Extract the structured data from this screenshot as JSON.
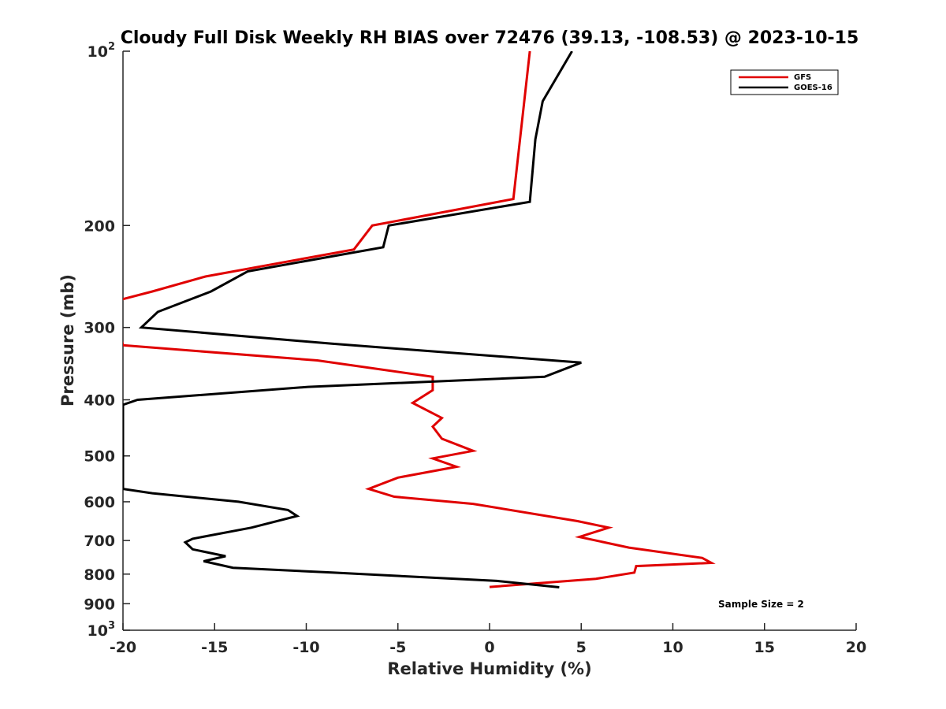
{
  "chart_data": {
    "type": "line",
    "title": "Cloudy Full Disk Weekly RH BIAS over 72476 (39.13, -108.53) @ 2023-10-15",
    "xlabel": "Relative Humidity (%)",
    "ylabel": "Pressure (mb)",
    "xlim": [
      -20,
      20
    ],
    "ylim": [
      100,
      1000
    ],
    "y_scale": "log",
    "y_reversed": true,
    "x_ticks": [
      -20,
      -15,
      -10,
      -5,
      0,
      5,
      10,
      15,
      20
    ],
    "x_tick_labels": [
      "-20",
      "-15",
      "-10",
      "-5",
      "0",
      "5",
      "10",
      "15",
      "20"
    ],
    "y_ticks": [
      100,
      200,
      300,
      400,
      500,
      600,
      700,
      800,
      900,
      1000
    ],
    "y_tick_labels": [
      {
        "base": "10",
        "sup": "2"
      },
      {
        "base": "200",
        "sup": ""
      },
      {
        "base": "300",
        "sup": ""
      },
      {
        "base": "400",
        "sup": ""
      },
      {
        "base": "500",
        "sup": ""
      },
      {
        "base": "600",
        "sup": ""
      },
      {
        "base": "700",
        "sup": ""
      },
      {
        "base": "800",
        "sup": ""
      },
      {
        "base": "900",
        "sup": ""
      },
      {
        "base": "10",
        "sup": "3"
      }
    ],
    "grid": false,
    "legend_position": "top-right",
    "annotation": "Sample Size = 2",
    "series": [
      {
        "name": "GFS",
        "color": "#e00000",
        "points": [
          [
            2.2,
            100
          ],
          [
            1.3,
            180
          ],
          [
            -6.4,
            200
          ],
          [
            -7.4,
            220
          ],
          [
            -15.5,
            245
          ],
          [
            -18.4,
            260
          ],
          [
            -20,
            268
          ],
          [
            -20.6,
            275
          ],
          [
            -20,
            322
          ],
          [
            -9.4,
            342
          ],
          [
            -3.1,
            365
          ],
          [
            -3.1,
            385
          ],
          [
            -4.2,
            405
          ],
          [
            -2.6,
            430
          ],
          [
            -3.1,
            445
          ],
          [
            -2.6,
            467
          ],
          [
            -0.9,
            490
          ],
          [
            -3.1,
            505
          ],
          [
            -1.8,
            522
          ],
          [
            -5.0,
            545
          ],
          [
            -6.6,
            570
          ],
          [
            -5.2,
            588
          ],
          [
            -0.9,
            605
          ],
          [
            4.8,
            648
          ],
          [
            6.5,
            665
          ],
          [
            4.9,
            690
          ],
          [
            7.6,
            720
          ],
          [
            11.6,
            750
          ],
          [
            12.1,
            765
          ],
          [
            8.0,
            775
          ],
          [
            7.9,
            795
          ],
          [
            5.8,
            815
          ],
          [
            0,
            842
          ]
        ]
      },
      {
        "name": "GOES-16",
        "color": "#000000",
        "points": [
          [
            4.5,
            100
          ],
          [
            2.9,
            122
          ],
          [
            2.5,
            142
          ],
          [
            2.2,
            182
          ],
          [
            -5.5,
            200
          ],
          [
            -5.8,
            218
          ],
          [
            -13.2,
            240
          ],
          [
            -15.2,
            260
          ],
          [
            -18.1,
            282
          ],
          [
            -19.0,
            300
          ],
          [
            -8.6,
            320
          ],
          [
            5.0,
            345
          ],
          [
            3.0,
            365
          ],
          [
            -9.9,
            380
          ],
          [
            -19.2,
            400
          ],
          [
            -20,
            408
          ],
          [
            -20,
            570
          ],
          [
            -18.4,
            580
          ],
          [
            -13.7,
            600
          ],
          [
            -11.0,
            620
          ],
          [
            -10.5,
            635
          ],
          [
            -13.0,
            665
          ],
          [
            -16.2,
            695
          ],
          [
            -16.6,
            705
          ],
          [
            -16.2,
            725
          ],
          [
            -14.4,
            745
          ],
          [
            -15.6,
            760
          ],
          [
            -14.0,
            780
          ],
          [
            -8.6,
            795
          ],
          [
            0.4,
            822
          ],
          [
            3.8,
            843
          ]
        ]
      }
    ]
  }
}
